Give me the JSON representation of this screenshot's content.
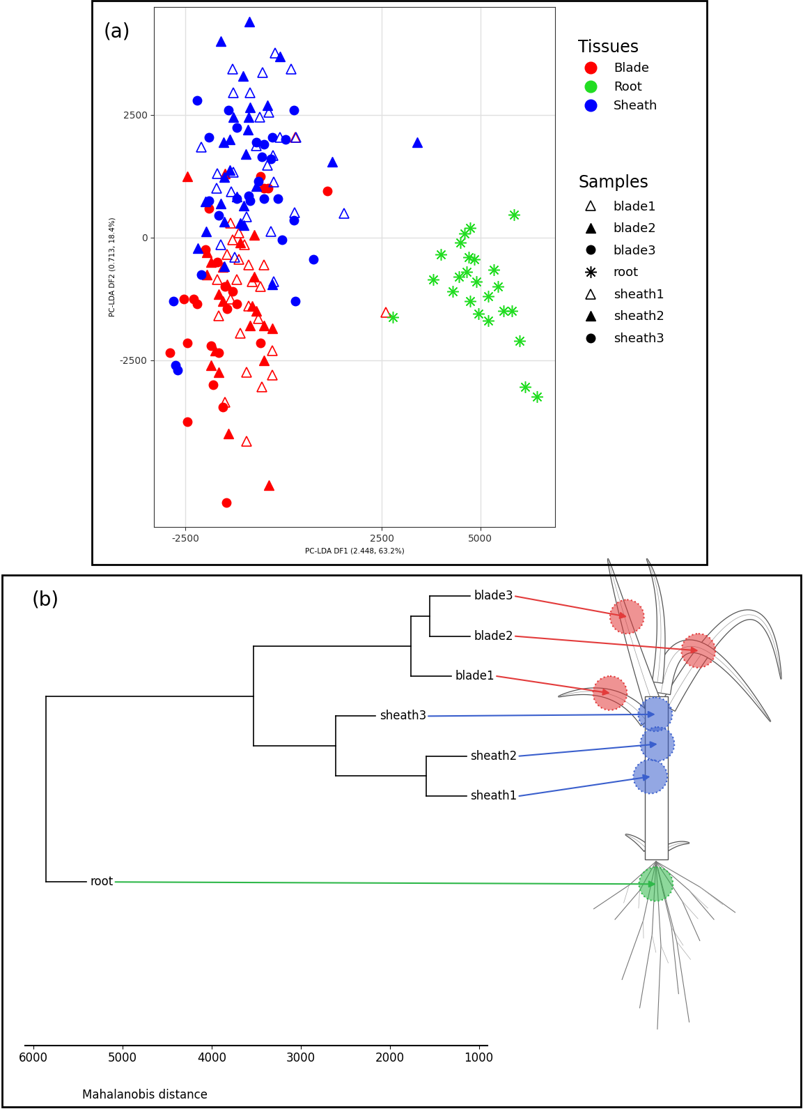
{
  "chart_data": [
    {
      "type": "scatter",
      "panel_label": "(a)",
      "xlabel": "PC-LDA DF1 (2.448, 63.2%)",
      "ylabel": "PC-LDA DF2 (0.713, 18.4%)",
      "xlim": [
        -3300,
        6900
      ],
      "ylim": [
        -5900,
        4700
      ],
      "xticks": [
        -2500,
        2500,
        5000
      ],
      "yticks": [
        -2500,
        0,
        2500
      ],
      "grid": true,
      "legend": "right",
      "tissue_legend": {
        "title": "Tissues",
        "entries": [
          {
            "name": "Blade",
            "color": "#ff0000"
          },
          {
            "name": "Root",
            "color": "#22dd22"
          },
          {
            "name": "Sheath",
            "color": "#0000ff"
          }
        ]
      },
      "sample_legend_title": "Samples",
      "series": [
        {
          "name": "blade1",
          "color": "#ff0000",
          "marker": "open_triangle",
          "x": [
            -1350,
            -1150,
            -1300,
            -1000,
            -1450,
            -1150,
            -900,
            -500,
            -1700,
            -1200,
            -800,
            -600,
            -1350,
            -900,
            -1100,
            -650,
            -300,
            -950,
            -550,
            -300,
            -1500,
            -950,
            2590,
            300,
            -1650
          ],
          "y": [
            300,
            100,
            -50,
            -150,
            -350,
            -450,
            -550,
            -550,
            -850,
            -850,
            -900,
            -1000,
            -1250,
            -1400,
            -1950,
            -1650,
            -2300,
            -2750,
            -3050,
            -2800,
            -3350,
            -4150,
            -1520,
            2050,
            -1600
          ]
        },
        {
          "name": "blade2",
          "color": "#ff0000",
          "marker": "triangle",
          "x": [
            -2450,
            -1500,
            -750,
            -1950,
            -1850,
            -1550,
            -1450,
            -750,
            -1950,
            -1650,
            -1550,
            -800,
            -700,
            -500,
            -850,
            -300,
            -1750,
            -1850,
            -1650,
            -500,
            -1400,
            -380,
            -1100
          ],
          "y": [
            1250,
            1300,
            50,
            -300,
            -500,
            -600,
            -950,
            -800,
            -750,
            -1150,
            -1300,
            -1400,
            -1500,
            -1800,
            -1800,
            -1850,
            -2300,
            -2600,
            -2750,
            -2500,
            -4000,
            -5050,
            -100
          ]
        },
        {
          "name": "blade3",
          "color": "#ff0000",
          "marker": "circle",
          "x": [
            -1900,
            -600,
            -500,
            1100,
            -2000,
            -1700,
            -2550,
            -2300,
            -2200,
            -1500,
            -1300,
            -1450,
            -1650,
            -1850,
            -2450,
            -2900,
            -1800,
            -2450,
            -1550,
            -1460,
            -1200,
            -600,
            -400
          ],
          "y": [
            600,
            1250,
            1000,
            950,
            -250,
            -500,
            -1250,
            -1250,
            -1350,
            -1000,
            -1100,
            -1450,
            -2350,
            -2200,
            -2150,
            -2350,
            -3000,
            -3750,
            -3450,
            -5400,
            -1350,
            -2150,
            1000
          ]
        },
        {
          "name": "root",
          "color": "#22dd22",
          "marker": "asterisk",
          "x": [
            2770,
            3800,
            4000,
            4450,
            4600,
            4750,
            4700,
            4650,
            4850,
            4750,
            4950,
            5200,
            5350,
            5200,
            5450,
            5600,
            5800,
            5850,
            6000,
            6450,
            6150,
            4300,
            4500,
            4900
          ],
          "y": [
            -1620,
            -850,
            -350,
            -800,
            80,
            200,
            -400,
            -700,
            -450,
            -1300,
            -1550,
            -1200,
            -650,
            -1700,
            -1000,
            -1500,
            -1500,
            470,
            -2100,
            -3250,
            -3050,
            -1100,
            -100,
            -900
          ]
        },
        {
          "name": "sheath1",
          "color": "#0000ff",
          "marker": "open_triangle",
          "x": [
            -1310,
            -540,
            -220,
            180,
            -1280,
            -860,
            -610,
            -380,
            -90,
            310,
            -270,
            -1280,
            -1330,
            -1690,
            -1710,
            -410,
            -250,
            -940,
            270,
            -320,
            1530,
            -700,
            -1600,
            -1250,
            -250,
            -2100
          ],
          "y": [
            3440,
            3370,
            3760,
            3440,
            2960,
            2960,
            2460,
            2560,
            2050,
            2040,
            1680,
            1330,
            940,
            1300,
            1010,
            1480,
            1140,
            430,
            510,
            120,
            500,
            1880,
            -150,
            -400,
            -900,
            1850
          ]
        },
        {
          "name": "sheath2",
          "color": "#0000ff",
          "marker": "triangle",
          "x": [
            -1600,
            -880,
            -90,
            -1030,
            -410,
            -860,
            1240,
            -1280,
            -900,
            -1370,
            -920,
            -1530,
            -970,
            -1380,
            -1510,
            -1600,
            -1190,
            -2000,
            -1010,
            -1100,
            -1510,
            -1980,
            -2180,
            -1510,
            -1010,
            3400,
            -300,
            -700
          ],
          "y": [
            4000,
            4400,
            3700,
            3300,
            2700,
            2650,
            1550,
            2450,
            2450,
            2000,
            2200,
            1950,
            1700,
            1370,
            1230,
            700,
            840,
            740,
            650,
            290,
            320,
            120,
            -220,
            -580,
            250,
            1950,
            -950,
            1050
          ]
        },
        {
          "name": "sheath3",
          "color": "#0000ff",
          "marker": "circle",
          "x": [
            -2200,
            -1400,
            -1900,
            -1200,
            -700,
            -500,
            -300,
            -550,
            -320,
            250,
            -650,
            -850,
            -1200,
            -900,
            -500,
            -150,
            -1900,
            -1650,
            250,
            -50,
            750,
            -2100,
            -2800,
            300,
            -2750,
            -2700,
            50
          ],
          "y": [
            2800,
            2600,
            2050,
            2250,
            1950,
            1900,
            2050,
            1650,
            1600,
            2600,
            1150,
            750,
            800,
            850,
            800,
            800,
            750,
            450,
            350,
            -50,
            -450,
            -750,
            -1300,
            -1300,
            -2600,
            -2700,
            2000
          ]
        }
      ]
    },
    {
      "type": "dendrogram",
      "panel_label": "(b)",
      "xlabel": "Mahalanobis distance",
      "xlim": [
        6100,
        900
      ],
      "xticks": [
        6000,
        5000,
        4000,
        3000,
        2000,
        1000
      ],
      "leaves": [
        {
          "name": "blade3",
          "color": "#e33b3b"
        },
        {
          "name": "blade2",
          "color": "#e33b3b"
        },
        {
          "name": "blade1",
          "color": "#e33b3b"
        },
        {
          "name": "sheath3",
          "color": "#3a5fcd"
        },
        {
          "name": "sheath2",
          "color": "#3a5fcd"
        },
        {
          "name": "sheath1",
          "color": "#3a5fcd"
        },
        {
          "name": "root",
          "color": "#2fb84a"
        }
      ],
      "merges": [
        {
          "members": [
            "blade3",
            "blade2"
          ],
          "height": 1550
        },
        {
          "members": [
            "sheath2",
            "sheath1"
          ],
          "height": 1590
        },
        {
          "members": [
            "blade3",
            "blade2",
            "blade1"
          ],
          "height": 1760
        },
        {
          "members": [
            "sheath3",
            "sheath2",
            "sheath1"
          ],
          "height": 2610
        },
        {
          "members": [
            "blade3",
            "blade2",
            "blade1",
            "sheath3",
            "sheath2",
            "sheath1"
          ],
          "height": 3530
        },
        {
          "members": [
            "blade3",
            "blade2",
            "blade1",
            "sheath3",
            "sheath2",
            "sheath1",
            "root"
          ],
          "height": 5860
        }
      ]
    }
  ]
}
